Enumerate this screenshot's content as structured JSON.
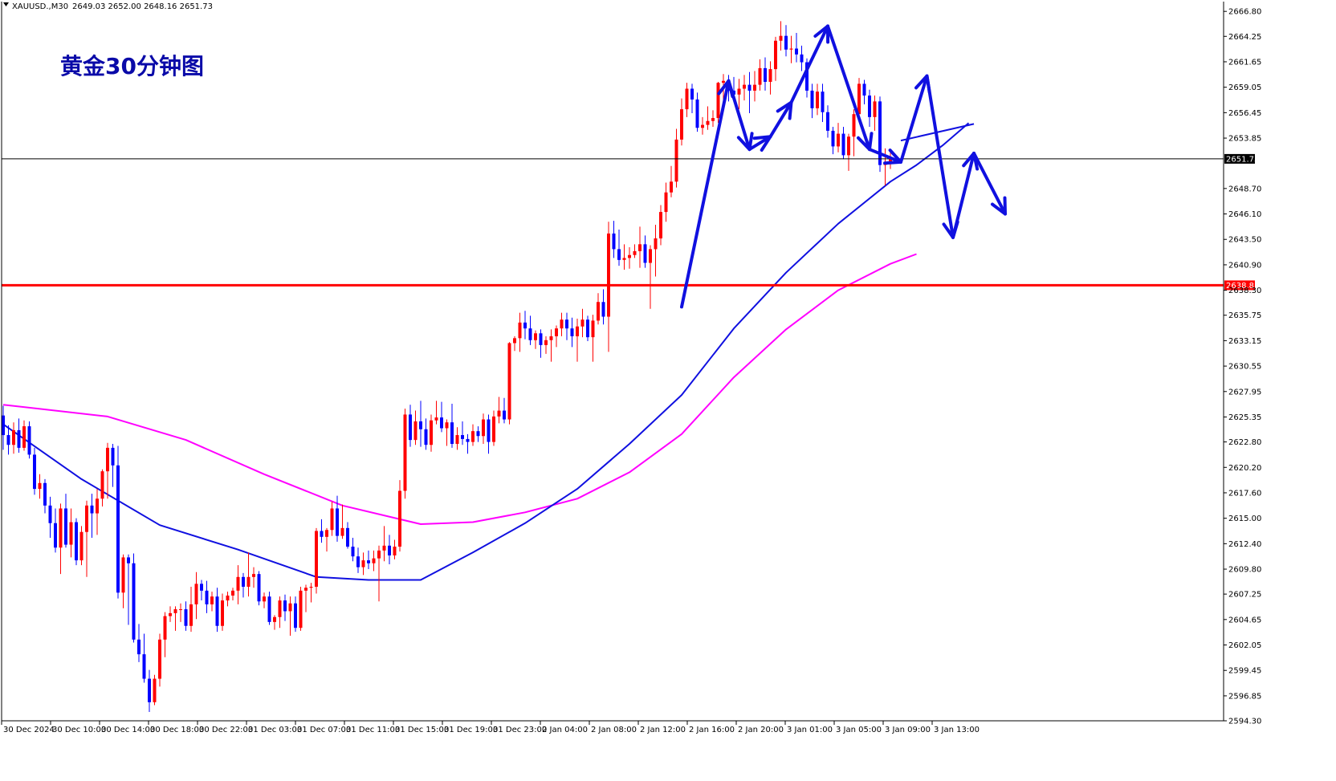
{
  "header": {
    "symbol": "XAUUSD.,M30",
    "ohlc": "2649.03 2652.00 2648.16 2651.73"
  },
  "chart_data": {
    "type": "candlestick",
    "title": "黄金30分钟图",
    "symbol": "XAUUSD",
    "timeframe": "M30",
    "ohlc_current": {
      "open": 2649.03,
      "high": 2652.0,
      "low": 2648.16,
      "close": 2651.73
    },
    "ylim": [
      2594.3,
      2667.8
    ],
    "y_ticks": [
      2666.8,
      2664.25,
      2661.65,
      2659.05,
      2656.45,
      2653.85,
      2648.7,
      2646.1,
      2643.5,
      2640.9,
      2638.3,
      2635.75,
      2633.15,
      2630.55,
      2627.95,
      2625.35,
      2622.8,
      2620.2,
      2617.6,
      2615.0,
      2612.4,
      2609.8,
      2607.25,
      2604.65,
      2602.05,
      2599.45,
      2596.85,
      2594.3
    ],
    "x_ticks": [
      "30 Dec 2024",
      "30 Dec 10:00",
      "30 Dec 14:00",
      "30 Dec 18:00",
      "30 Dec 22:00",
      "31 Dec 03:00",
      "31 Dec 07:00",
      "31 Dec 11:00",
      "31 Dec 15:00",
      "31 Dec 19:00",
      "31 Dec 23:00",
      "2 Jan 04:00",
      "2 Jan 08:00",
      "2 Jan 12:00",
      "2 Jan 16:00",
      "2 Jan 20:00",
      "3 Jan 01:00",
      "3 Jan 05:00",
      "3 Jan 09:00",
      "3 Jan 13:00"
    ],
    "current_price": {
      "label": "2651.73",
      "value": 2651.73,
      "line_color": "#000000",
      "label_bg": "#000000"
    },
    "support_line": {
      "label": "2638.81",
      "value": 2638.81,
      "color": "#ff0000"
    },
    "candles": [
      [
        2625.5,
        2626.5,
        2622.0,
        2623.5
      ],
      [
        2623.5,
        2624.5,
        2621.5,
        2622.5
      ],
      [
        2622.5,
        2624.8,
        2621.6,
        2624.0
      ],
      [
        2624.0,
        2625.2,
        2621.7,
        2622.2
      ],
      [
        2622.2,
        2625.0,
        2621.9,
        2624.4
      ],
      [
        2624.4,
        2624.9,
        2621.1,
        2621.5
      ],
      [
        2621.5,
        2622.2,
        2617.4,
        2618.0
      ],
      [
        2618.0,
        2619.5,
        2617.0,
        2618.6
      ],
      [
        2618.6,
        2619.0,
        2615.5,
        2616.3
      ],
      [
        2616.3,
        2617.2,
        2613.0,
        2614.5
      ],
      [
        2614.5,
        2616.0,
        2611.5,
        2612.0
      ],
      [
        2612.0,
        2616.5,
        2609.3,
        2616.0
      ],
      [
        2616.0,
        2617.5,
        2612.0,
        2612.3
      ],
      [
        2612.3,
        2616.0,
        2611.0,
        2614.6
      ],
      [
        2614.6,
        2615.0,
        2610.2,
        2610.7
      ],
      [
        2610.7,
        2614.2,
        2610.2,
        2613.6
      ],
      [
        2613.6,
        2616.8,
        2609.0,
        2616.3
      ],
      [
        2616.3,
        2617.5,
        2613.0,
        2615.5
      ],
      [
        2615.5,
        2618.0,
        2613.3,
        2617.0
      ],
      [
        2617.0,
        2620.0,
        2616.2,
        2619.8
      ],
      [
        2619.8,
        2622.7,
        2617.0,
        2622.2
      ],
      [
        2622.2,
        2622.6,
        2618.2,
        2620.4
      ],
      [
        2620.4,
        2622.4,
        2606.8,
        2607.4
      ],
      [
        2607.4,
        2611.3,
        2605.8,
        2611.0
      ],
      [
        2611.0,
        2611.3,
        2604.1,
        2610.4
      ],
      [
        2610.4,
        2611.4,
        2602.3,
        2602.6
      ],
      [
        2602.6,
        2604.2,
        2600.3,
        2601.1
      ],
      [
        2601.1,
        2603.2,
        2598.2,
        2598.6
      ],
      [
        2598.6,
        2599.5,
        2595.2,
        2596.2
      ],
      [
        2596.2,
        2599.0,
        2595.9,
        2598.6
      ],
      [
        2598.6,
        2603.2,
        2597.8,
        2602.6
      ],
      [
        2602.6,
        2605.4,
        2600.8,
        2605.0
      ],
      [
        2605.0,
        2606.0,
        2604.4,
        2605.3
      ],
      [
        2605.3,
        2606.0,
        2603.5,
        2605.7
      ],
      [
        2605.7,
        2606.3,
        2604.4,
        2605.7
      ],
      [
        2605.7,
        2606.5,
        2603.5,
        2604.0
      ],
      [
        2604.0,
        2608.0,
        2603.4,
        2606.2
      ],
      [
        2606.2,
        2609.5,
        2604.7,
        2608.3
      ],
      [
        2608.3,
        2608.7,
        2606.6,
        2607.6
      ],
      [
        2607.6,
        2608.6,
        2605.3,
        2606.2
      ],
      [
        2606.2,
        2607.5,
        2605.5,
        2607.0
      ],
      [
        2607.0,
        2607.9,
        2603.4,
        2604.0
      ],
      [
        2604.0,
        2607.3,
        2603.5,
        2606.6
      ],
      [
        2606.6,
        2607.5,
        2606.0,
        2607.1
      ],
      [
        2607.1,
        2607.9,
        2606.6,
        2607.6
      ],
      [
        2607.6,
        2610.2,
        2606.2,
        2609.0
      ],
      [
        2609.0,
        2609.4,
        2606.9,
        2608.0
      ],
      [
        2608.0,
        2611.5,
        2607.0,
        2609.0
      ],
      [
        2609.0,
        2610.0,
        2607.9,
        2609.3
      ],
      [
        2609.3,
        2609.6,
        2606.1,
        2606.5
      ],
      [
        2606.5,
        2607.4,
        2605.8,
        2607.0
      ],
      [
        2607.0,
        2607.5,
        2604.1,
        2604.4
      ],
      [
        2604.4,
        2605.1,
        2603.6,
        2604.9
      ],
      [
        2604.9,
        2607.0,
        2603.8,
        2606.6
      ],
      [
        2606.6,
        2607.2,
        2604.5,
        2605.5
      ],
      [
        2605.5,
        2607.0,
        2603.0,
        2606.3
      ],
      [
        2606.3,
        2607.0,
        2603.4,
        2603.8
      ],
      [
        2603.8,
        2608.0,
        2603.5,
        2607.6
      ],
      [
        2607.6,
        2608.2,
        2605.4,
        2607.9
      ],
      [
        2607.9,
        2608.4,
        2606.4,
        2608.0
      ],
      [
        2608.0,
        2614.0,
        2607.3,
        2613.7
      ],
      [
        2613.7,
        2614.9,
        2612.5,
        2613.1
      ],
      [
        2613.1,
        2614.0,
        2611.6,
        2613.8
      ],
      [
        2613.8,
        2616.7,
        2613.2,
        2616.0
      ],
      [
        2616.0,
        2617.3,
        2612.6,
        2613.2
      ],
      [
        2613.2,
        2616.4,
        2612.9,
        2614.0
      ],
      [
        2614.0,
        2614.6,
        2611.9,
        2612.1
      ],
      [
        2612.1,
        2613.0,
        2610.6,
        2611.1
      ],
      [
        2611.1,
        2612.0,
        2609.4,
        2610.0
      ],
      [
        2610.0,
        2611.5,
        2609.2,
        2610.7
      ],
      [
        2610.7,
        2611.7,
        2609.8,
        2610.4
      ],
      [
        2610.4,
        2611.7,
        2609.6,
        2610.9
      ],
      [
        2610.9,
        2612.2,
        2606.5,
        2611.7
      ],
      [
        2611.7,
        2614.2,
        2610.6,
        2612.2
      ],
      [
        2612.2,
        2613.3,
        2610.3,
        2611.2
      ],
      [
        2611.2,
        2612.8,
        2610.8,
        2612.1
      ],
      [
        2612.1,
        2618.9,
        2611.6,
        2617.8
      ],
      [
        2617.8,
        2626.2,
        2617.0,
        2625.6
      ],
      [
        2625.6,
        2626.6,
        2622.3,
        2623.0
      ],
      [
        2623.0,
        2626.0,
        2622.5,
        2624.9
      ],
      [
        2624.9,
        2627.0,
        2622.3,
        2624.1
      ],
      [
        2624.1,
        2625.2,
        2622.0,
        2622.5
      ],
      [
        2622.5,
        2625.6,
        2621.8,
        2625.0
      ],
      [
        2625.0,
        2627.0,
        2624.6,
        2625.3
      ],
      [
        2625.3,
        2626.9,
        2623.8,
        2624.2
      ],
      [
        2624.2,
        2625.1,
        2622.4,
        2624.8
      ],
      [
        2624.8,
        2626.7,
        2622.2,
        2622.6
      ],
      [
        2622.6,
        2624.3,
        2622.0,
        2623.5
      ],
      [
        2623.5,
        2624.9,
        2622.5,
        2623.1
      ],
      [
        2623.1,
        2623.6,
        2621.6,
        2622.8
      ],
      [
        2622.8,
        2624.6,
        2622.4,
        2623.9
      ],
      [
        2623.9,
        2624.4,
        2622.8,
        2623.4
      ],
      [
        2623.4,
        2625.7,
        2622.6,
        2625.1
      ],
      [
        2625.1,
        2625.6,
        2621.6,
        2622.8
      ],
      [
        2622.8,
        2626.0,
        2622.4,
        2625.4
      ],
      [
        2625.4,
        2627.4,
        2624.7,
        2626.0
      ],
      [
        2626.0,
        2627.3,
        2624.7,
        2625.1
      ],
      [
        2625.1,
        2633.0,
        2624.6,
        2632.9
      ],
      [
        2632.9,
        2633.6,
        2632.1,
        2633.4
      ],
      [
        2633.4,
        2636.0,
        2632.0,
        2635.0
      ],
      [
        2635.0,
        2636.2,
        2633.3,
        2634.4
      ],
      [
        2634.4,
        2635.7,
        2632.7,
        2633.2
      ],
      [
        2633.2,
        2634.2,
        2632.3,
        2633.9
      ],
      [
        2633.9,
        2634.3,
        2631.4,
        2632.7
      ],
      [
        2632.7,
        2633.6,
        2631.8,
        2633.2
      ],
      [
        2633.2,
        2634.3,
        2631.0,
        2633.6
      ],
      [
        2633.6,
        2634.7,
        2632.5,
        2634.4
      ],
      [
        2634.4,
        2636.0,
        2633.6,
        2635.3
      ],
      [
        2635.3,
        2636.0,
        2633.2,
        2634.4
      ],
      [
        2634.4,
        2635.5,
        2632.5,
        2633.6
      ],
      [
        2633.6,
        2635.4,
        2631.0,
        2634.6
      ],
      [
        2634.6,
        2636.4,
        2633.5,
        2635.3
      ],
      [
        2635.3,
        2635.7,
        2633.1,
        2633.5
      ],
      [
        2633.5,
        2635.8,
        2631.0,
        2635.2
      ],
      [
        2635.2,
        2638.0,
        2634.8,
        2637.1
      ],
      [
        2637.1,
        2638.4,
        2634.8,
        2635.6
      ],
      [
        2635.6,
        2645.3,
        2632.0,
        2644.1
      ],
      [
        2644.1,
        2645.4,
        2641.6,
        2642.5
      ],
      [
        2642.5,
        2644.5,
        2640.8,
        2641.4
      ],
      [
        2641.4,
        2643.0,
        2640.4,
        2641.6
      ],
      [
        2641.6,
        2642.7,
        2640.5,
        2641.9
      ],
      [
        2641.9,
        2643.0,
        2641.6,
        2642.3
      ],
      [
        2642.3,
        2644.8,
        2640.6,
        2643.0
      ],
      [
        2643.0,
        2643.9,
        2640.6,
        2641.1
      ],
      [
        2641.1,
        2642.9,
        2636.4,
        2642.5
      ],
      [
        2642.5,
        2645.0,
        2639.7,
        2643.6
      ],
      [
        2643.6,
        2647.0,
        2642.9,
        2646.3
      ],
      [
        2646.3,
        2649.3,
        2645.3,
        2648.3
      ],
      [
        2648.3,
        2651.0,
        2647.8,
        2649.4
      ],
      [
        2649.4,
        2654.8,
        2648.8,
        2653.7
      ],
      [
        2653.7,
        2657.9,
        2653.1,
        2656.8
      ],
      [
        2656.8,
        2659.5,
        2656.0,
        2658.9
      ],
      [
        2658.9,
        2659.4,
        2656.4,
        2657.8
      ],
      [
        2657.8,
        2658.5,
        2654.5,
        2654.9
      ],
      [
        2654.9,
        2656.0,
        2654.2,
        2655.2
      ],
      [
        2655.2,
        2657.1,
        2654.7,
        2655.6
      ],
      [
        2655.6,
        2656.7,
        2655.0,
        2655.9
      ],
      [
        2655.9,
        2659.6,
        2655.4,
        2659.5
      ],
      [
        2659.5,
        2660.4,
        2657.3,
        2659.7
      ],
      [
        2659.7,
        2660.3,
        2657.6,
        2658.7
      ],
      [
        2658.7,
        2660.1,
        2657.9,
        2658.3
      ],
      [
        2658.3,
        2659.9,
        2656.8,
        2658.9
      ],
      [
        2658.9,
        2660.3,
        2657.7,
        2659.3
      ],
      [
        2659.3,
        2660.6,
        2656.4,
        2658.7
      ],
      [
        2658.7,
        2660.7,
        2657.6,
        2659.3
      ],
      [
        2659.3,
        2661.9,
        2658.7,
        2661.0
      ],
      [
        2661.0,
        2662.1,
        2658.7,
        2659.6
      ],
      [
        2659.6,
        2661.7,
        2658.3,
        2660.9
      ],
      [
        2660.9,
        2664.2,
        2659.7,
        2663.8
      ],
      [
        2663.8,
        2665.8,
        2662.8,
        2664.3
      ],
      [
        2664.3,
        2665.4,
        2662.2,
        2662.9
      ],
      [
        2662.9,
        2664.3,
        2661.5,
        2663.0
      ],
      [
        2663.0,
        2664.6,
        2661.6,
        2662.4
      ],
      [
        2662.4,
        2663.3,
        2660.7,
        2661.6
      ],
      [
        2661.6,
        2662.0,
        2658.0,
        2658.7
      ],
      [
        2658.7,
        2659.4,
        2655.9,
        2656.9
      ],
      [
        2656.9,
        2659.4,
        2656.2,
        2658.6
      ],
      [
        2658.6,
        2659.4,
        2655.5,
        2656.5
      ],
      [
        2656.5,
        2657.2,
        2653.9,
        2654.6
      ],
      [
        2654.6,
        2655.0,
        2652.2,
        2653.0
      ],
      [
        2653.0,
        2655.4,
        2652.4,
        2654.3
      ],
      [
        2654.3,
        2655.0,
        2651.7,
        2652.1
      ],
      [
        2652.1,
        2654.3,
        2650.5,
        2654.0
      ],
      [
        2654.0,
        2656.8,
        2652.0,
        2656.3
      ],
      [
        2656.3,
        2660.0,
        2655.5,
        2659.4
      ],
      [
        2659.4,
        2659.8,
        2657.3,
        2658.2
      ],
      [
        2658.2,
        2658.8,
        2655.0,
        2656.0
      ],
      [
        2656.0,
        2658.2,
        2654.6,
        2657.6
      ],
      [
        2657.6,
        2658.1,
        2650.4,
        2651.1
      ],
      [
        2651.1,
        2652.8,
        2649.0,
        2651.3
      ],
      [
        2651.3,
        2652.5,
        2650.7,
        2651.7
      ]
    ],
    "ma_blue": [
      [
        0,
        2624.6
      ],
      [
        15,
        2619.0
      ],
      [
        30,
        2614.3
      ],
      [
        45,
        2611.8
      ],
      [
        60,
        2609.0
      ],
      [
        70,
        2608.7
      ],
      [
        80,
        2608.7
      ],
      [
        90,
        2611.5
      ],
      [
        100,
        2614.5
      ],
      [
        110,
        2618.0
      ],
      [
        120,
        2622.6
      ],
      [
        130,
        2627.6
      ],
      [
        140,
        2634.4
      ],
      [
        150,
        2640.1
      ],
      [
        160,
        2645.1
      ],
      [
        170,
        2649.4
      ],
      [
        175,
        2651.1
      ],
      [
        180,
        2653.1
      ],
      [
        185,
        2655.4
      ]
    ],
    "ma_magenta": [
      [
        0,
        2626.6
      ],
      [
        20,
        2625.4
      ],
      [
        35,
        2623.0
      ],
      [
        50,
        2619.5
      ],
      [
        65,
        2616.3
      ],
      [
        80,
        2614.4
      ],
      [
        90,
        2614.6
      ],
      [
        100,
        2615.6
      ],
      [
        110,
        2617.0
      ],
      [
        120,
        2619.7
      ],
      [
        130,
        2623.6
      ],
      [
        140,
        2629.4
      ],
      [
        150,
        2634.3
      ],
      [
        160,
        2638.3
      ],
      [
        170,
        2641.0
      ],
      [
        175,
        2642.0
      ]
    ],
    "annotations": {
      "wave_path": [
        [
          130,
          2636.6
        ],
        [
          139,
          2659.7
        ],
        [
          143,
          2652.7
        ],
        [
          147,
          2654.0
        ],
        [
          151,
          2657.5
        ],
        [
          158,
          2665.3
        ],
        [
          166,
          2652.7
        ],
        [
          172,
          2651.4
        ],
        [
          177,
          2660.2
        ],
        [
          182,
          2643.7
        ],
        [
          186,
          2652.3
        ],
        [
          192,
          2646.1
        ]
      ],
      "trend_line": [
        [
          172,
          2653.6
        ],
        [
          186,
          2655.3
        ]
      ],
      "color": "#1010e0"
    }
  }
}
